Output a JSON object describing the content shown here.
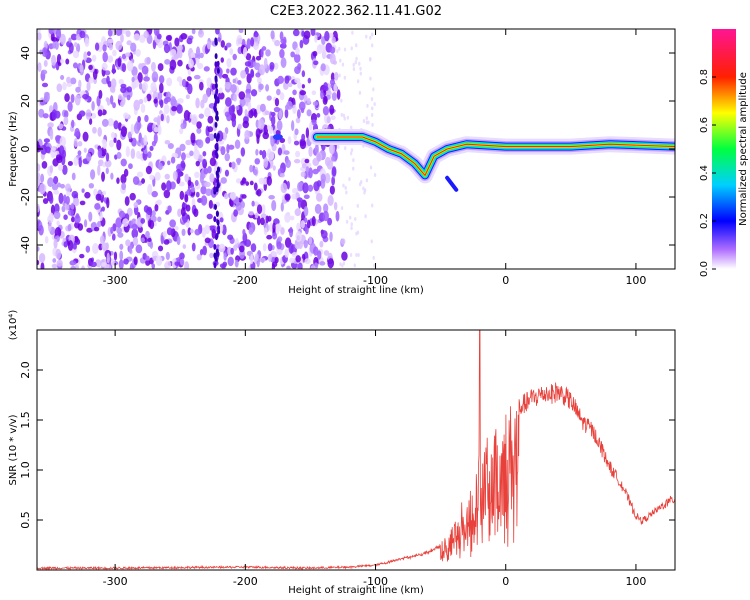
{
  "title": "C2E3.2022.362.11.41.G02",
  "chart_data": [
    {
      "type": "heatmap",
      "xlabel": "Height of straight line (km)",
      "ylabel": "Frequency (Hz)",
      "xlim": [
        -360,
        130
      ],
      "ylim": [
        -50,
        50
      ],
      "x_ticks": [
        -300,
        -200,
        -100,
        0,
        100
      ],
      "y_ticks": [
        -40,
        -20,
        0,
        20,
        40
      ],
      "colorbar": {
        "label": "Normalized spectral amplitude",
        "range": [
          0,
          1
        ],
        "ticks": [
          "0.0",
          "0.2",
          "0.4",
          "0.6",
          "0.8"
        ],
        "colormap": [
          "#ffffff",
          "#8a2be2",
          "#0000ff",
          "#00ffff",
          "#00ff00",
          "#ffff00",
          "#ff0000",
          "#ff1493"
        ]
      },
      "features": {
        "noise_region_x": [
          -360,
          -130
        ],
        "vertical_stripe_x": -222,
        "signal_track": [
          {
            "x": -145,
            "y": 5
          },
          {
            "x": -130,
            "y": 5
          },
          {
            "x": -110,
            "y": 5
          },
          {
            "x": -100,
            "y": 3
          },
          {
            "x": -90,
            "y": 0
          },
          {
            "x": -80,
            "y": -2
          },
          {
            "x": -70,
            "y": -6
          },
          {
            "x": -62,
            "y": -11
          },
          {
            "x": -55,
            "y": -3
          },
          {
            "x": -45,
            "y": 0
          },
          {
            "x": -30,
            "y": 2
          },
          {
            "x": 0,
            "y": 1
          },
          {
            "x": 50,
            "y": 1
          },
          {
            "x": 80,
            "y": 2
          },
          {
            "x": 130,
            "y": 1
          }
        ]
      }
    },
    {
      "type": "line",
      "xlabel": "Height of straight line (km)",
      "ylabel": "SNR (10 * v/v)",
      "y_multiplier": "(x10⁴)",
      "xlim": [
        -360,
        130
      ],
      "ylim": [
        0,
        2.4
      ],
      "x_ticks": [
        -300,
        -200,
        -100,
        0,
        100
      ],
      "y_ticks": [
        "0.5",
        "1.0",
        "1.5",
        "2.0"
      ],
      "line_color": "#e8413b",
      "envelope": {
        "x": [
          -360,
          -300,
          -200,
          -150,
          -120,
          -100,
          -90,
          -80,
          -70,
          -60,
          -50,
          -45,
          -40,
          -35,
          -30,
          -25,
          -22,
          -20,
          -15,
          -10,
          -5,
          0,
          5,
          10,
          15,
          20,
          25,
          30,
          35,
          40,
          45,
          50,
          55,
          60,
          65,
          70,
          75,
          80,
          85,
          90,
          95,
          100,
          105,
          110,
          115,
          120,
          125,
          130
        ],
        "y": [
          0.02,
          0.02,
          0.03,
          0.02,
          0.03,
          0.05,
          0.08,
          0.12,
          0.14,
          0.18,
          0.25,
          0.35,
          0.45,
          0.6,
          0.7,
          0.9,
          1.0,
          1.1,
          1.2,
          1.25,
          1.35,
          1.5,
          1.55,
          1.65,
          1.7,
          1.75,
          1.78,
          1.8,
          1.8,
          1.82,
          1.78,
          1.72,
          1.6,
          1.5,
          1.45,
          1.35,
          1.2,
          1.05,
          0.95,
          0.85,
          0.7,
          0.55,
          0.5,
          0.55,
          0.6,
          0.65,
          0.7,
          0.72
        ]
      },
      "spike_region_x": [
        -50,
        10
      ],
      "peak": {
        "x": -20,
        "y": 2.4
      }
    }
  ]
}
